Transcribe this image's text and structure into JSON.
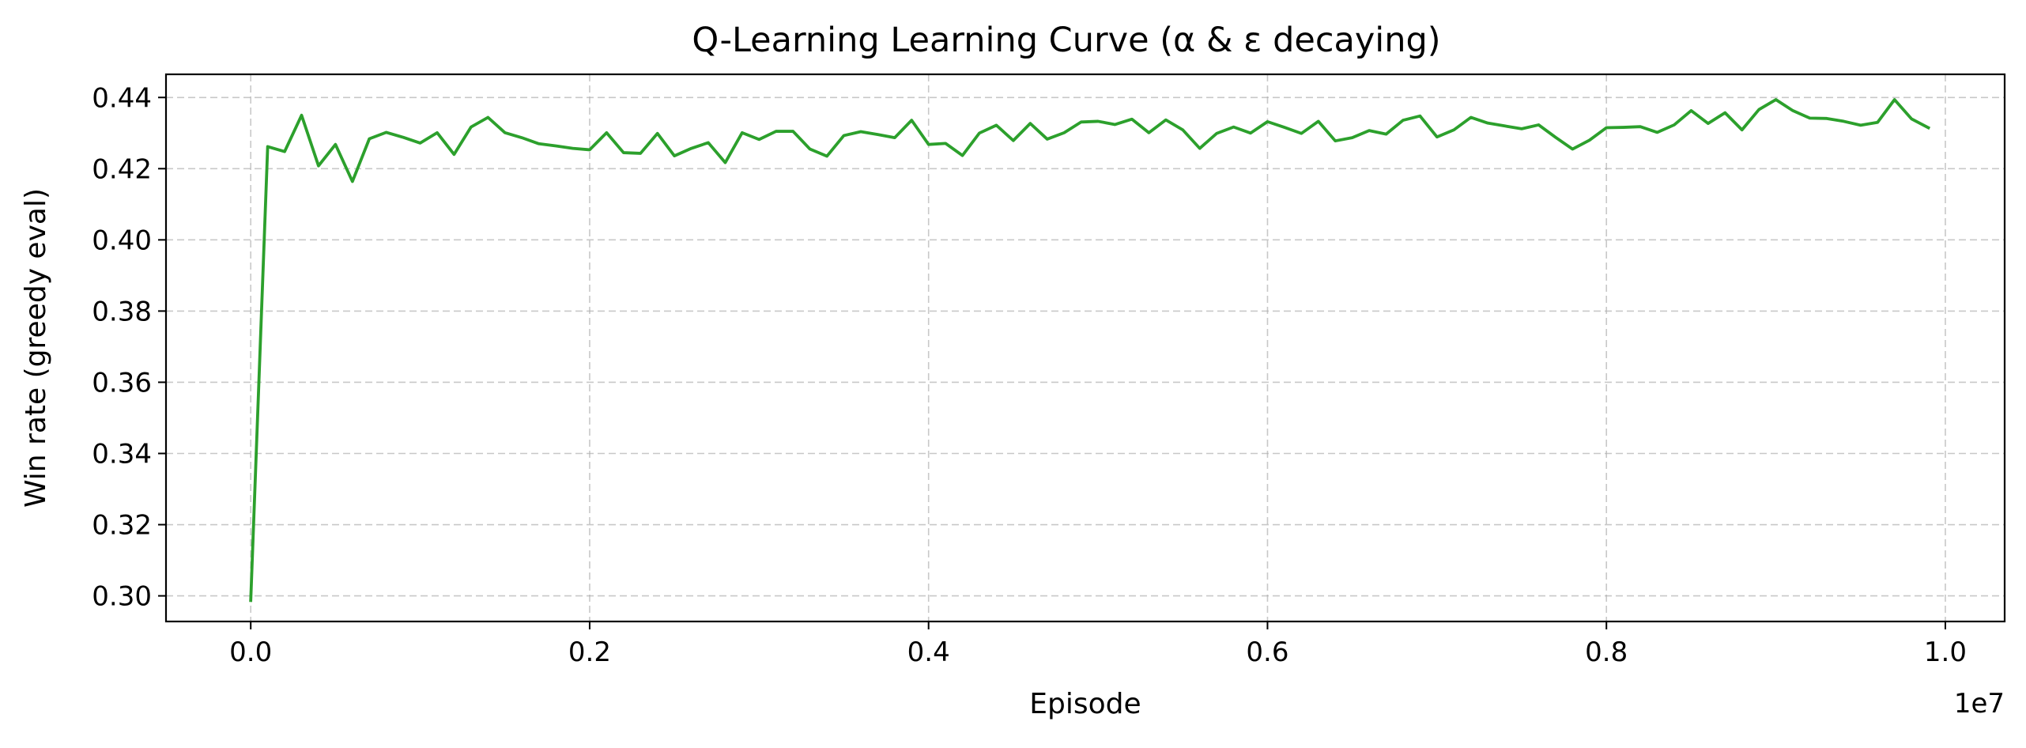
{
  "chart_data": {
    "type": "line",
    "title": "Q-Learning Learning Curve (α & ε decaying)",
    "xlabel": "Episode",
    "ylabel": "Win rate (greedy eval)",
    "x_offset_label": "1e7",
    "x_scale": 10000000,
    "xlim": [
      -0.05,
      1.035
    ],
    "ylim": [
      0.2928,
      0.4465
    ],
    "x_ticks": [
      0.0,
      0.2,
      0.4,
      0.6,
      0.8,
      1.0
    ],
    "x_tick_labels": [
      "0.0",
      "0.2",
      "0.4",
      "0.6",
      "0.8",
      "1.0"
    ],
    "y_ticks": [
      0.3,
      0.32,
      0.34,
      0.36,
      0.38,
      0.4,
      0.42,
      0.44
    ],
    "y_tick_labels": [
      "0.30",
      "0.32",
      "0.34",
      "0.36",
      "0.38",
      "0.40",
      "0.42",
      "0.44"
    ],
    "grid": true,
    "series": [
      {
        "color": "#2ca02c",
        "x": [
          0,
          100000,
          200000,
          300000,
          400000,
          500000,
          600000,
          700000,
          800000,
          900000,
          1000000,
          1100000,
          1200000,
          1300000,
          1400000,
          1500000,
          1600000,
          1700000,
          1800000,
          1900000,
          2000000,
          2100000,
          2200000,
          2300000,
          2400000,
          2500000,
          2600000,
          2700000,
          2800000,
          2900000,
          3000000,
          3100000,
          3200000,
          3300000,
          3400000,
          3500000,
          3600000,
          3700000,
          3800000,
          3900000,
          4000000,
          4100000,
          4200000,
          4300000,
          4400000,
          4500000,
          4600000,
          4700000,
          4800000,
          4900000,
          5000000,
          5100000,
          5200000,
          5300000,
          5400000,
          5500000,
          5600000,
          5700000,
          5800000,
          5900000,
          6000000,
          6100000,
          6200000,
          6300000,
          6400000,
          6500000,
          6600000,
          6700000,
          6800000,
          6900000,
          7000000,
          7100000,
          7200000,
          7300000,
          7400000,
          7500000,
          7600000,
          7700000,
          7800000,
          7900000,
          8000000,
          8100000,
          8200000,
          8300000,
          8400000,
          8500000,
          8600000,
          8700000,
          8800000,
          8900000,
          9000000,
          9100000,
          9200000,
          9300000,
          9400000,
          9500000,
          9600000,
          9700000,
          9800000,
          9900000
        ],
        "y": [
          0.2987,
          0.4262,
          0.4248,
          0.435,
          0.4208,
          0.4268,
          0.4164,
          0.4284,
          0.4302,
          0.4288,
          0.4272,
          0.4301,
          0.424,
          0.4317,
          0.4344,
          0.4301,
          0.4287,
          0.427,
          0.4264,
          0.4257,
          0.4253,
          0.4301,
          0.4245,
          0.4243,
          0.4299,
          0.4236,
          0.4257,
          0.4273,
          0.4217,
          0.4301,
          0.4282,
          0.4305,
          0.4305,
          0.4255,
          0.4235,
          0.4293,
          0.4304,
          0.4296,
          0.4287,
          0.4336,
          0.4268,
          0.4271,
          0.4237,
          0.43,
          0.4322,
          0.4279,
          0.4327,
          0.4283,
          0.4301,
          0.4331,
          0.4333,
          0.4324,
          0.4339,
          0.4301,
          0.4337,
          0.4309,
          0.4257,
          0.4299,
          0.4317,
          0.43,
          0.4332,
          0.4316,
          0.4299,
          0.4333,
          0.4278,
          0.4287,
          0.4307,
          0.4297,
          0.4336,
          0.4348,
          0.4289,
          0.4309,
          0.4344,
          0.4328,
          0.432,
          0.4312,
          0.4323,
          0.4288,
          0.4255,
          0.428,
          0.4315,
          0.4316,
          0.4318,
          0.4302,
          0.4323,
          0.4363,
          0.4327,
          0.4357,
          0.4309,
          0.4366,
          0.4394,
          0.4363,
          0.4342,
          0.4341,
          0.4333,
          0.4322,
          0.433,
          0.4394,
          0.434,
          0.4315
        ]
      }
    ]
  }
}
